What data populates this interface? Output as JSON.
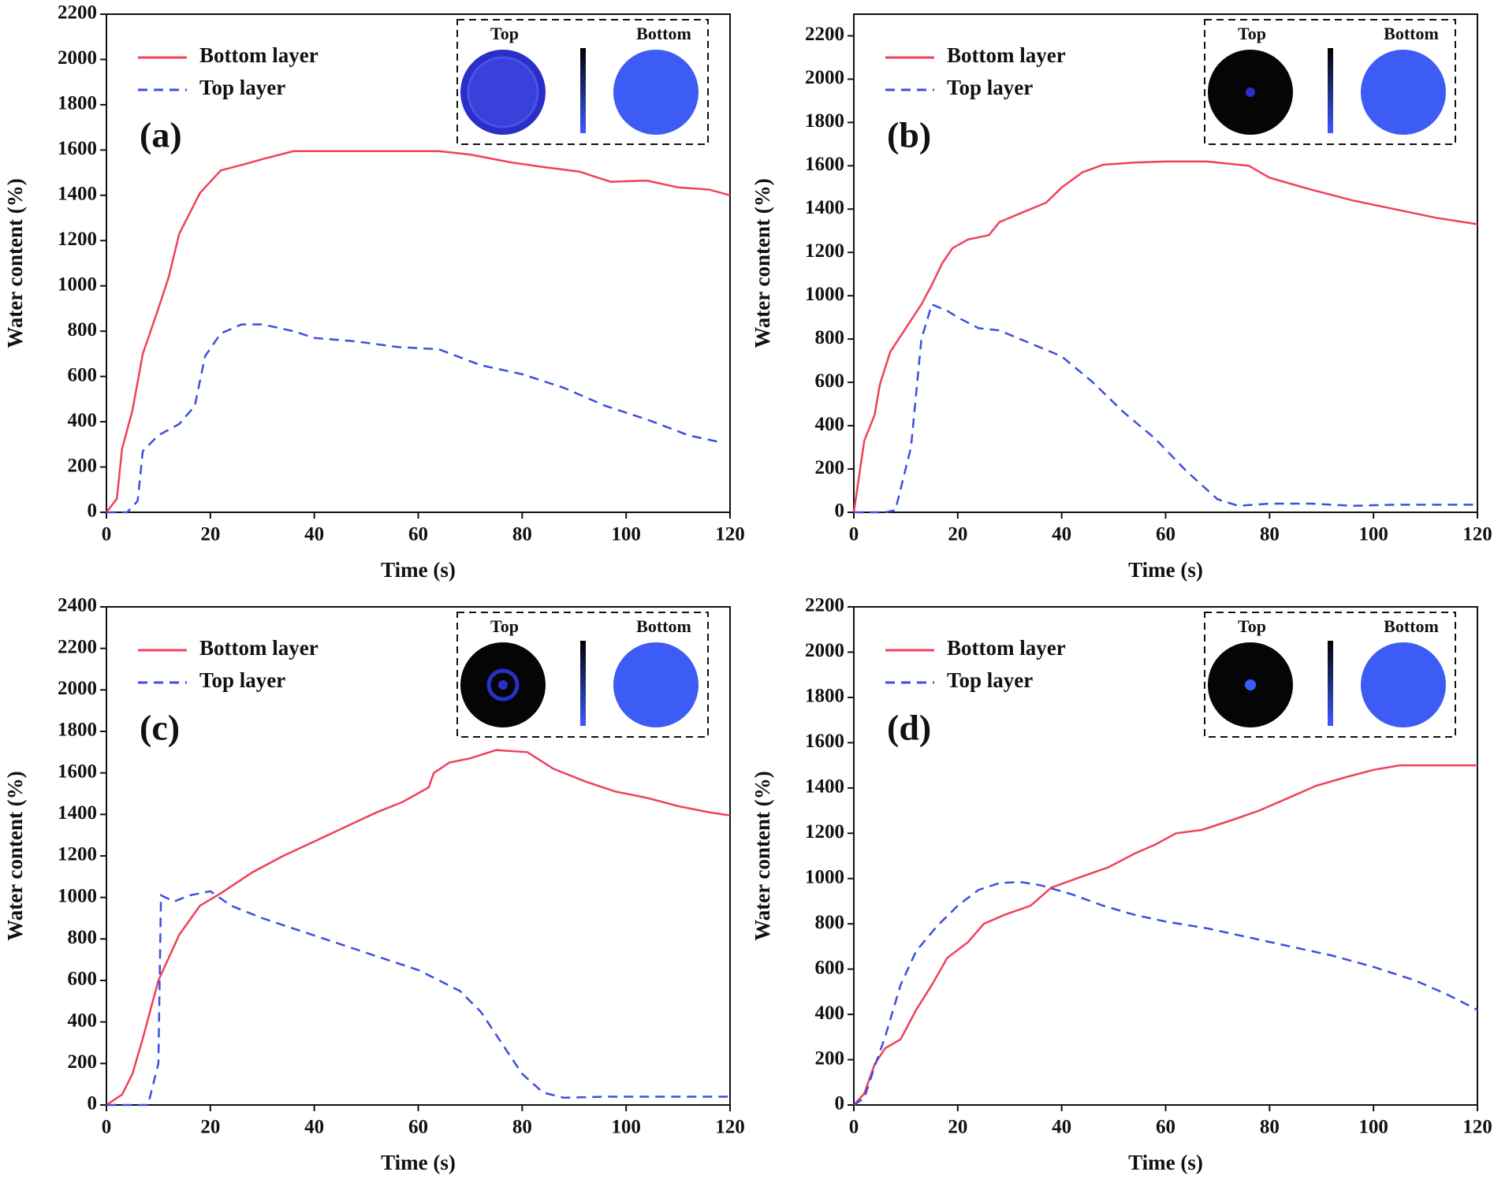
{
  "chart_data": [
    {
      "type": "line",
      "annotation": "(a)",
      "xlabel": "Time (s)",
      "ylabel": "Water content (%)",
      "xlim": [
        0,
        120
      ],
      "xticks": [
        0,
        20,
        40,
        60,
        80,
        100,
        120
      ],
      "ylim": [
        0,
        2200
      ],
      "yticks": [
        0,
        200,
        400,
        600,
        800,
        1000,
        1200,
        1400,
        1600,
        1800,
        2000,
        2200
      ],
      "legend": "upper left",
      "inset_labels": [
        "Top",
        "Bottom"
      ],
      "series": [
        {
          "name": "Bottom layer",
          "color": "#f0405a",
          "linestyle": "solid",
          "x": [
            0,
            2,
            3,
            5,
            7,
            10,
            12,
            14,
            18,
            22,
            27,
            30,
            36,
            50,
            64,
            70,
            78,
            84,
            91,
            97,
            104,
            110,
            116,
            120
          ],
          "values": [
            0,
            60,
            280,
            450,
            700,
            900,
            1040,
            1230,
            1410,
            1510,
            1540,
            1560,
            1595,
            1595,
            1595,
            1580,
            1545,
            1525,
            1505,
            1460,
            1465,
            1435,
            1425,
            1400
          ]
        },
        {
          "name": "Top layer",
          "color": "#3b4fe0",
          "linestyle": "dashed",
          "x": [
            0,
            4,
            6,
            7,
            10,
            14,
            17,
            19,
            22,
            26,
            30,
            36,
            40,
            48,
            56,
            64,
            72,
            80,
            88,
            96,
            104,
            112,
            118
          ],
          "values": [
            0,
            0,
            50,
            270,
            340,
            390,
            470,
            690,
            790,
            830,
            830,
            800,
            770,
            755,
            730,
            720,
            650,
            610,
            550,
            470,
            410,
            340,
            310
          ]
        }
      ]
    },
    {
      "type": "line",
      "annotation": "(b)",
      "xlabel": "Time (s)",
      "ylabel": "Water content (%)",
      "xlim": [
        0,
        120
      ],
      "xticks": [
        0,
        20,
        40,
        60,
        80,
        100,
        120
      ],
      "ylim": [
        0,
        2300
      ],
      "yticks": [
        0,
        200,
        400,
        600,
        800,
        1000,
        1200,
        1400,
        1600,
        1800,
        2000,
        2200
      ],
      "legend": "upper left",
      "inset_labels": [
        "Top",
        "Bottom"
      ],
      "series": [
        {
          "name": "Bottom layer",
          "color": "#f0405a",
          "linestyle": "solid",
          "x": [
            0,
            2,
            4,
            5,
            7,
            10,
            13,
            15,
            17,
            19,
            22,
            26,
            28,
            32,
            37,
            40,
            44,
            48,
            54,
            60,
            68,
            72,
            76,
            80,
            88,
            96,
            104,
            112,
            120
          ],
          "values": [
            0,
            330,
            450,
            590,
            740,
            850,
            960,
            1050,
            1150,
            1220,
            1260,
            1280,
            1340,
            1380,
            1430,
            1500,
            1570,
            1605,
            1615,
            1620,
            1620,
            1610,
            1600,
            1545,
            1490,
            1440,
            1400,
            1360,
            1330
          ]
        },
        {
          "name": "Top layer",
          "color": "#3b4fe0",
          "linestyle": "dashed",
          "x": [
            0,
            6,
            8,
            11,
            13,
            15,
            18,
            20,
            24,
            28,
            34,
            40,
            46,
            52,
            58,
            64,
            70,
            74,
            80,
            88,
            96,
            104,
            112,
            120
          ],
          "values": [
            0,
            0,
            10,
            300,
            800,
            960,
            930,
            900,
            850,
            840,
            780,
            720,
            600,
            460,
            340,
            190,
            60,
            30,
            40,
            40,
            30,
            35,
            35,
            35
          ]
        }
      ]
    },
    {
      "type": "line",
      "annotation": "(c)",
      "xlabel": "Time (s)",
      "ylabel": "Water content (%)",
      "xlim": [
        0,
        120
      ],
      "xticks": [
        0,
        20,
        40,
        60,
        80,
        100,
        120
      ],
      "ylim": [
        0,
        2400
      ],
      "yticks": [
        0,
        200,
        400,
        600,
        800,
        1000,
        1200,
        1400,
        1600,
        1800,
        2000,
        2200,
        2400
      ],
      "legend": "upper left",
      "inset_labels": [
        "Top",
        "Bottom"
      ],
      "series": [
        {
          "name": "Bottom layer",
          "color": "#f0405a",
          "linestyle": "solid",
          "x": [
            0,
            3,
            5,
            7,
            10,
            14,
            18,
            22,
            28,
            34,
            40,
            46,
            52,
            57,
            62,
            63,
            66,
            70,
            75,
            81,
            86,
            92,
            98,
            104,
            110,
            116,
            120
          ],
          "values": [
            0,
            50,
            150,
            320,
            600,
            820,
            960,
            1020,
            1120,
            1200,
            1270,
            1340,
            1410,
            1460,
            1530,
            1600,
            1650,
            1670,
            1710,
            1700,
            1620,
            1560,
            1510,
            1480,
            1440,
            1410,
            1395
          ]
        },
        {
          "name": "Top layer",
          "color": "#3b4fe0",
          "linestyle": "dashed",
          "x": [
            0,
            8,
            10,
            10.5,
            13,
            16,
            20,
            24,
            30,
            36,
            42,
            48,
            54,
            60,
            64,
            68,
            72,
            76,
            80,
            84,
            88,
            96,
            104,
            112,
            120
          ],
          "values": [
            0,
            0,
            200,
            1010,
            980,
            1010,
            1030,
            960,
            900,
            850,
            800,
            750,
            700,
            650,
            600,
            550,
            450,
            300,
            150,
            60,
            35,
            40,
            40,
            40,
            40
          ]
        }
      ]
    },
    {
      "type": "line",
      "annotation": "(d)",
      "xlabel": "Time (s)",
      "ylabel": "Water content (%)",
      "xlim": [
        0,
        120
      ],
      "xticks": [
        0,
        20,
        40,
        60,
        80,
        100,
        120
      ],
      "ylim": [
        0,
        2200
      ],
      "yticks": [
        0,
        200,
        400,
        600,
        800,
        1000,
        1200,
        1400,
        1600,
        1800,
        2000,
        2200
      ],
      "legend": "upper left",
      "inset_labels": [
        "Top",
        "Bottom"
      ],
      "series": [
        {
          "name": "Bottom layer",
          "color": "#f0405a",
          "linestyle": "solid",
          "x": [
            0,
            2,
            4,
            6,
            9,
            12,
            15,
            18,
            22,
            25,
            29,
            34,
            38,
            44,
            49,
            54,
            58,
            62,
            67,
            73,
            78,
            83,
            89,
            95,
            100,
            105,
            110,
            120
          ],
          "values": [
            0,
            50,
            180,
            250,
            290,
            420,
            530,
            650,
            720,
            800,
            840,
            880,
            960,
            1010,
            1050,
            1110,
            1150,
            1200,
            1215,
            1260,
            1300,
            1350,
            1410,
            1450,
            1480,
            1500,
            1500,
            1500
          ]
        },
        {
          "name": "Top layer",
          "color": "#3b4fe0",
          "linestyle": "dashed",
          "x": [
            0,
            2,
            4,
            6,
            9,
            12,
            16,
            20,
            24,
            28,
            32,
            36,
            42,
            48,
            54,
            60,
            68,
            76,
            84,
            92,
            100,
            108,
            114,
            120
          ],
          "values": [
            0,
            30,
            170,
            300,
            530,
            680,
            790,
            880,
            950,
            980,
            985,
            970,
            930,
            880,
            840,
            810,
            780,
            740,
            700,
            660,
            610,
            550,
            490,
            420
          ]
        }
      ]
    }
  ]
}
